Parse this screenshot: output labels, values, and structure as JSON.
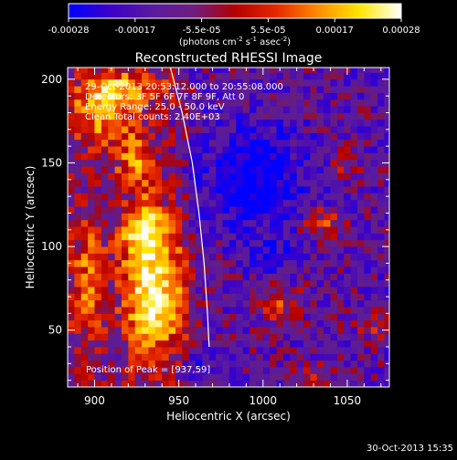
{
  "colorbar": {
    "tick_labels": [
      "-0.00028",
      "-0.00017",
      "-5.5e-05",
      "5.5e-05",
      "0.00017",
      "0.00028"
    ],
    "unit_label": "(photons cm",
    "unit_exp1": "-2",
    "unit_mid": " s",
    "unit_exp2": "-1",
    "unit_mid2": " asec",
    "unit_exp3": "-2",
    "unit_close": ")",
    "range": [
      -0.00028,
      0.00028
    ],
    "colors": [
      "#0000ff",
      "#3c00c8",
      "#5a1aa0",
      "#6e1e82",
      "#b40000",
      "#e62800",
      "#ff8c00",
      "#ffe600",
      "#ffffff"
    ]
  },
  "chart_data": {
    "type": "heatmap",
    "title": "Reconstructed RHESSI Image",
    "xlabel": "Heliocentric X (arcsec)",
    "ylabel": "Heliocentric Y (arcsec)",
    "xlim": [
      884,
      1075
    ],
    "ylim": [
      16,
      207
    ],
    "xticks": [
      900,
      950,
      1000,
      1050
    ],
    "yticks": [
      50,
      100,
      150,
      200
    ],
    "info_lines": [
      "29-Oct-2013 20:53:12.000 to 20:55:08.000",
      "Detectors: 3F 5F 6F 7F 8F 9F, Att 0",
      "Energy Range: 25.0 - 50.0 keV",
      "Clean    Total counts: 2.40E+03"
    ],
    "peak_label": "Position of Peak = [937,59]",
    "peak": [
      937,
      59
    ],
    "limb_points": [
      [
        945,
        207
      ],
      [
        952,
        180
      ],
      [
        958,
        150
      ],
      [
        962,
        120
      ],
      [
        965,
        90
      ],
      [
        967,
        60
      ],
      [
        968,
        40
      ]
    ]
  },
  "timestamp": "30-Oct-2013 15:35"
}
